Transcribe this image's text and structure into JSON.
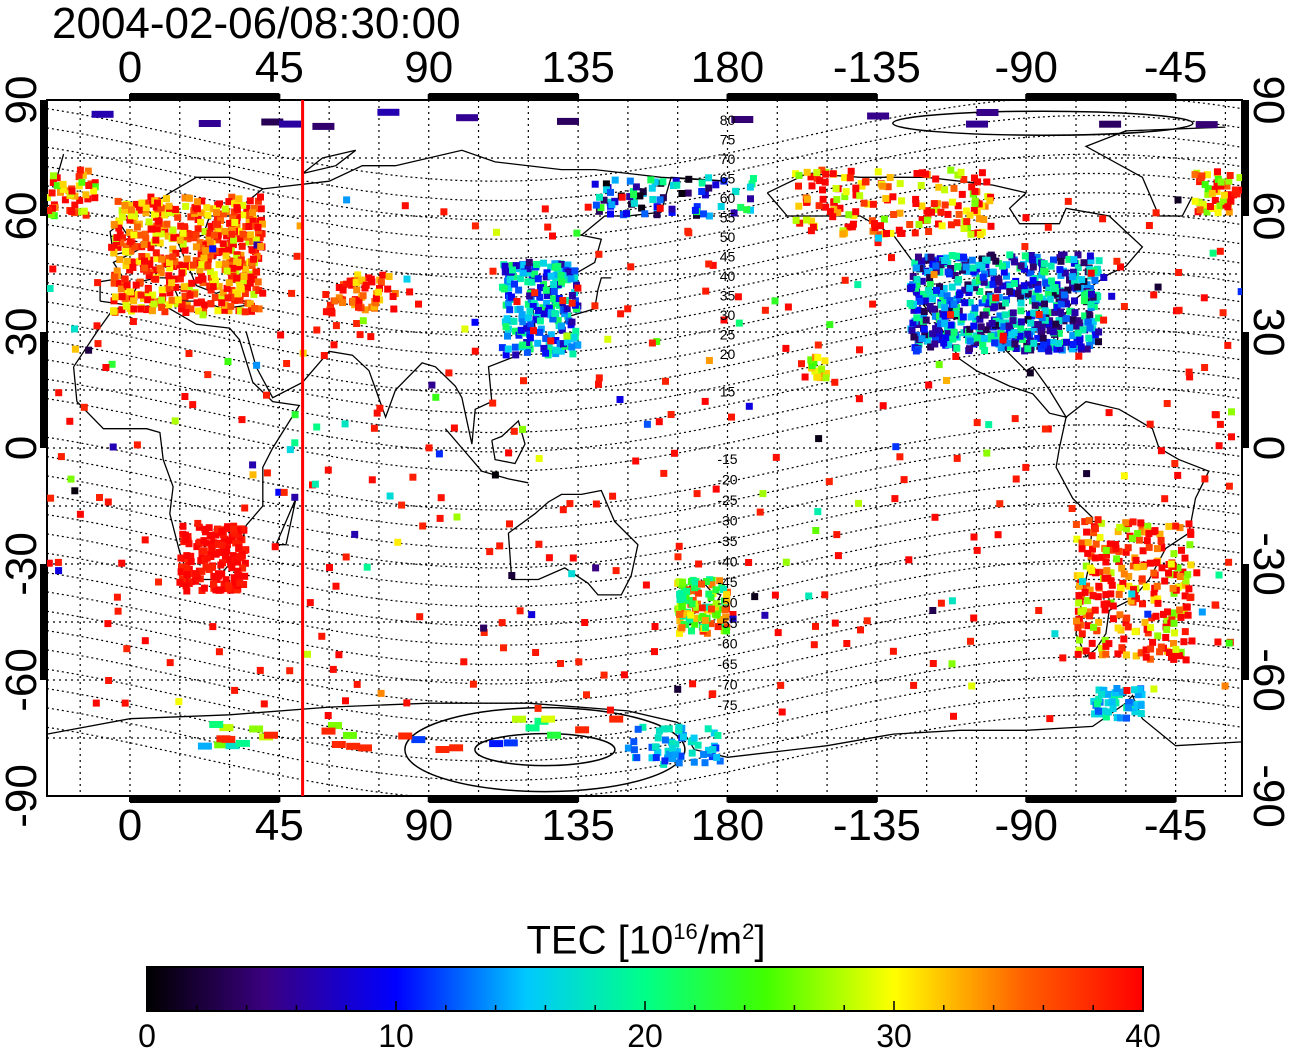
{
  "title": "2004-02-06/08:30:00",
  "map": {
    "x_ticks": [
      "0",
      "45",
      "90",
      "135",
      "180",
      "-135",
      "-90",
      "-45"
    ],
    "y_ticks_left": [
      "90",
      "60",
      "30",
      "0",
      "-30",
      "-60",
      "-90"
    ],
    "y_ticks_right": [
      "90",
      "60",
      "30",
      "0",
      "-30",
      "-60",
      "-90"
    ],
    "marker_line_longitude": 52,
    "marker_line_color": "#ff0000",
    "contour_labels_north": [
      "80",
      "75",
      "70",
      "65",
      "60",
      "55",
      "50",
      "45",
      "40",
      "35",
      "30",
      "25",
      "20",
      "15"
    ],
    "contour_labels_south": [
      "-15",
      "-20",
      "-25",
      "-30",
      "-35",
      "-40",
      "-45",
      "-50",
      "-55",
      "-60",
      "-65",
      "-70",
      "-75"
    ]
  },
  "colorbar": {
    "label_main": "TEC  [10",
    "label_sup1": "16",
    "label_mid": "/m",
    "label_sup2": "2",
    "label_end": "]",
    "ticks": [
      "0",
      "10",
      "20",
      "30",
      "40"
    ],
    "range": [
      0,
      40
    ],
    "colors": [
      "#000000",
      "#3a0080",
      "#0000ff",
      "#00ffff",
      "#00ff00",
      "#ffff00",
      "#ff8000",
      "#ff0000"
    ]
  },
  "chart_data": {
    "type": "heatmap",
    "title": "2004-02-06/08:30:00",
    "xlim": [
      -25,
      335
    ],
    "ylim": [
      -90,
      90
    ],
    "colorbar_label": "TEC [10^16/m^2]",
    "colorbar_range": [
      0,
      40
    ],
    "regions": [
      {
        "lon": [
          0,
          40
        ],
        "lat": [
          35,
          65
        ],
        "tec": 38
      },
      {
        "lon": [
          15,
          35
        ],
        "lat": [
          -35,
          -20
        ],
        "tec": 40
      },
      {
        "lon": [
          110,
          135
        ],
        "lat": [
          25,
          50
        ],
        "tec": 12
      },
      {
        "lon": [
          240,
          290
        ],
        "lat": [
          25,
          50
        ],
        "tec": 8
      },
      {
        "lon": [
          285,
          310
        ],
        "lat": [
          -50,
          -20
        ],
        "tec": 38
      },
      {
        "lon": [
          165,
          180
        ],
        "lat": [
          -50,
          -35
        ],
        "tec": 28
      },
      {
        "lon": [
          150,
          175
        ],
        "lat": [
          -80,
          -70
        ],
        "tec": 15
      }
    ]
  }
}
